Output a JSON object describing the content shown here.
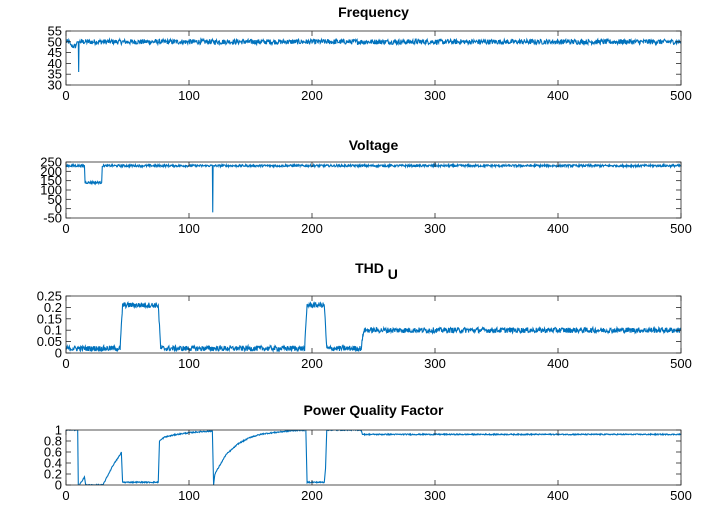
{
  "colors": {
    "series": "#0072bd",
    "axis": "#262626",
    "background": "#ffffff"
  },
  "chart_data": [
    {
      "type": "line",
      "title": "Frequency",
      "title_sub": "",
      "xlabel": "",
      "ylabel": "",
      "xlim": [
        0,
        500
      ],
      "ylim": [
        30,
        55
      ],
      "xticks": [
        0,
        100,
        200,
        300,
        400,
        500
      ],
      "yticks": [
        30,
        35,
        40,
        45,
        50,
        55
      ],
      "grid": false,
      "series": [
        {
          "name": "Frequency",
          "noise": 1.2,
          "x": [
            0,
            3,
            4,
            8,
            9,
            10,
            10.3,
            10.6,
            11,
            500
          ],
          "y": [
            50,
            50,
            48,
            48,
            50,
            50,
            36,
            50,
            50,
            50
          ]
        }
      ]
    },
    {
      "type": "line",
      "title": "Voltage",
      "title_sub": "",
      "xlabel": "",
      "ylabel": "",
      "xlim": [
        0,
        500
      ],
      "ylim": [
        -50,
        250
      ],
      "xticks": [
        0,
        100,
        200,
        300,
        400,
        500
      ],
      "yticks": [
        -50,
        0,
        50,
        100,
        150,
        200,
        250
      ],
      "grid": false,
      "series": [
        {
          "name": "Voltage",
          "noise": 6,
          "x": [
            0,
            15,
            15.5,
            29,
            29.5,
            119,
            119.3,
            119.6,
            120,
            500
          ],
          "y": [
            230,
            230,
            140,
            140,
            230,
            230,
            -20,
            230,
            230,
            230
          ]
        }
      ]
    },
    {
      "type": "line",
      "title": "THD",
      "title_sub": "U",
      "xlabel": "",
      "ylabel": "",
      "xlim": [
        0,
        500
      ],
      "ylim": [
        0,
        0.25
      ],
      "xticks": [
        0,
        100,
        200,
        300,
        400,
        500
      ],
      "yticks": [
        0,
        0.05,
        0.1,
        0.15,
        0.2,
        0.25
      ],
      "grid": false,
      "series": [
        {
          "name": "THD U",
          "noise": 0.012,
          "x": [
            0,
            44,
            46,
            75,
            77,
            194,
            196,
            210,
            212,
            240,
            242,
            500
          ],
          "y": [
            0.02,
            0.02,
            0.21,
            0.21,
            0.02,
            0.02,
            0.21,
            0.21,
            0.02,
            0.02,
            0.1,
            0.1
          ]
        }
      ]
    },
    {
      "type": "line",
      "title": "Power Quality Factor",
      "title_sub": "",
      "xlabel": "",
      "ylabel": "",
      "xlim": [
        0,
        500
      ],
      "ylim": [
        0,
        1
      ],
      "xticks": [
        0,
        100,
        200,
        300,
        400,
        500
      ],
      "yticks": [
        0,
        0.2,
        0.4,
        0.6,
        0.8,
        1
      ],
      "grid": false,
      "series": [
        {
          "name": "Power Quality Factor",
          "noise": 0.01,
          "x": [
            0,
            9.5,
            10,
            11,
            15,
            16,
            30,
            38,
            44,
            45,
            46,
            75,
            76,
            80,
            90,
            100,
            110,
            119,
            120,
            121,
            130,
            140,
            150,
            160,
            180,
            193,
            195,
            196,
            210,
            211,
            212,
            240,
            241,
            242,
            500
          ],
          "y": [
            1,
            1,
            0,
            0,
            0.15,
            0,
            0,
            0.35,
            0.55,
            0.6,
            0.05,
            0.05,
            0.8,
            0.87,
            0.92,
            0.95,
            0.97,
            0.98,
            0,
            0.2,
            0.55,
            0.75,
            0.87,
            0.93,
            0.98,
            1,
            1,
            0.05,
            0.05,
            0.3,
            1,
            1,
            0.92,
            0.92,
            0.92
          ]
        }
      ]
    }
  ]
}
